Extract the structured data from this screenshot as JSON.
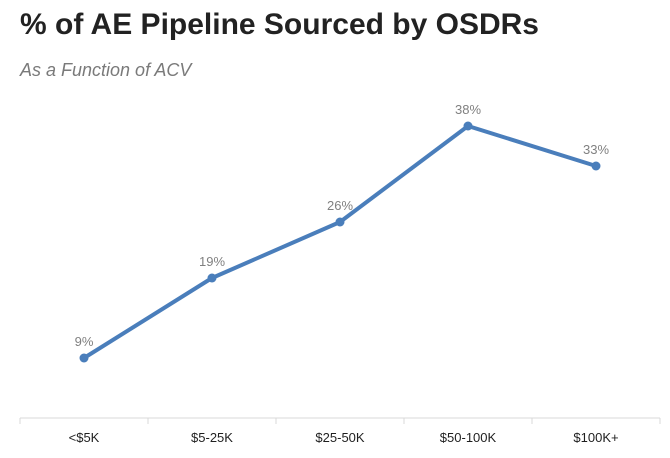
{
  "header": {
    "title": "% of AE Pipeline Sourced by OSDRs",
    "subtitle": "As a Function of ACV"
  },
  "colors": {
    "line": "#4a7ebb",
    "axis": "#d9d9d9",
    "data_label": "#808080",
    "tick_label": "#1f1f1f"
  },
  "chart_data": {
    "type": "line",
    "title": "% of AE Pipeline Sourced by OSDRs",
    "subtitle": "As a Function of ACV",
    "categories": [
      "<$5K",
      "$5-25K",
      "$25-50K",
      "$50-100K",
      "$100K+"
    ],
    "series": [
      {
        "values": [
          9,
          19,
          26,
          38,
          33
        ],
        "labels": [
          "9%",
          "19%",
          "26%",
          "38%",
          "33%"
        ]
      }
    ],
    "ylim": [
      0,
      40
    ],
    "grid": false,
    "legend": "none",
    "xlabel": "",
    "ylabel": ""
  }
}
